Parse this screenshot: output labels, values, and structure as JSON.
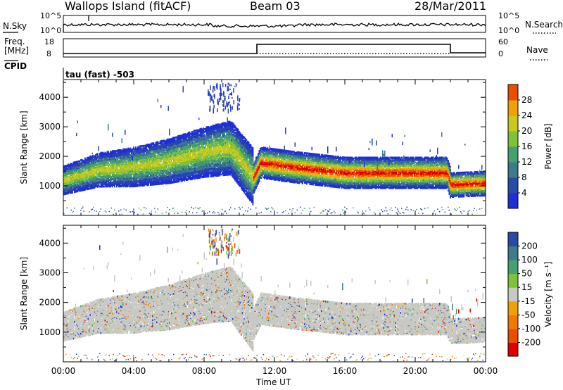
{
  "header": {
    "station": "Wallops Island (fitACF)",
    "beam": "Beam 03",
    "date": "28/Mar/2011"
  },
  "status_panels": {
    "nsky_label": "N.Sky",
    "nsky_ticks": [
      "10^5",
      "10^0"
    ],
    "nsearch_label": "N.Search",
    "nsearch_ticks": [
      "10^5",
      "10^0"
    ],
    "freq_label_line1": "Freq.",
    "freq_label_line2": "[MHz]",
    "freq_ticks": [
      "18",
      "8"
    ],
    "nave_label": "Nave",
    "nave_ticks": [
      "60",
      "0"
    ],
    "cpid_label": "CPID",
    "cpid_value": "tau (fast) -503"
  },
  "colors": {
    "power_scale": [
      "#1f2fd6",
      "#2a4aa8",
      "#3d7a8a",
      "#46a070",
      "#7fc23a",
      "#c8c81e",
      "#f0a000",
      "#e85000",
      "#e00000"
    ],
    "velocity_scale": [
      "#1f2fd6",
      "#2a4aa8",
      "#3d7a8a",
      "#46a070",
      "#7fc23a",
      "#c8c8c4",
      "#f0a000",
      "#f07a00",
      "#e85000",
      "#e00000"
    ],
    "ground_scatter": "#c8c8c4"
  },
  "chart_data": [
    {
      "type": "heatmap",
      "title": "",
      "xlabel": "Time UT",
      "ylabel": "Slant Range [km]",
      "xlim": [
        "00:00",
        "24:00"
      ],
      "ylim": [
        0,
        4600
      ],
      "x_ticks": [
        "00:00",
        "04:00",
        "08:00",
        "12:00",
        "16:00",
        "20:00",
        "00:00"
      ],
      "y_ticks": [
        "1000",
        "2000",
        "3000",
        "4000"
      ],
      "colorbar": {
        "label": "Power [dB]",
        "ticks": [
          "4",
          "8",
          "12",
          "16",
          "20",
          "24",
          "28"
        ],
        "range": [
          0,
          30
        ]
      },
      "dominant_band_center_km": [
        {
          "t": 0,
          "r": 1200
        },
        {
          "t": 2,
          "r": 1550
        },
        {
          "t": 4,
          "r": 1650
        },
        {
          "t": 6,
          "r": 1850
        },
        {
          "t": 8,
          "r": 2150
        },
        {
          "t": 9.5,
          "r": 2300
        },
        {
          "t": 10.8,
          "r": 1300
        },
        {
          "t": 11.2,
          "r": 1800
        },
        {
          "t": 13,
          "r": 1650
        },
        {
          "t": 16,
          "r": 1450
        },
        {
          "t": 19,
          "r": 1450
        },
        {
          "t": 21.8,
          "r": 1450
        },
        {
          "t": 22,
          "r": 1050
        },
        {
          "t": 24,
          "r": 1100
        }
      ]
    },
    {
      "type": "heatmap",
      "title": "",
      "xlabel": "Time UT",
      "ylabel": "Slant Range [km]",
      "xlim": [
        "00:00",
        "24:00"
      ],
      "ylim": [
        0,
        4600
      ],
      "x_ticks": [
        "00:00",
        "04:00",
        "08:00",
        "12:00",
        "16:00",
        "20:00",
        "00:00"
      ],
      "y_ticks": [
        "1000",
        "2000",
        "3000",
        "4000"
      ],
      "colorbar": {
        "label": "Velocity [m s^-1]",
        "ticks": [
          "200",
          "100",
          "50",
          "15",
          "-15",
          "-50",
          "-100",
          "-200"
        ]
      }
    }
  ],
  "x_axis_title": "Time UT"
}
